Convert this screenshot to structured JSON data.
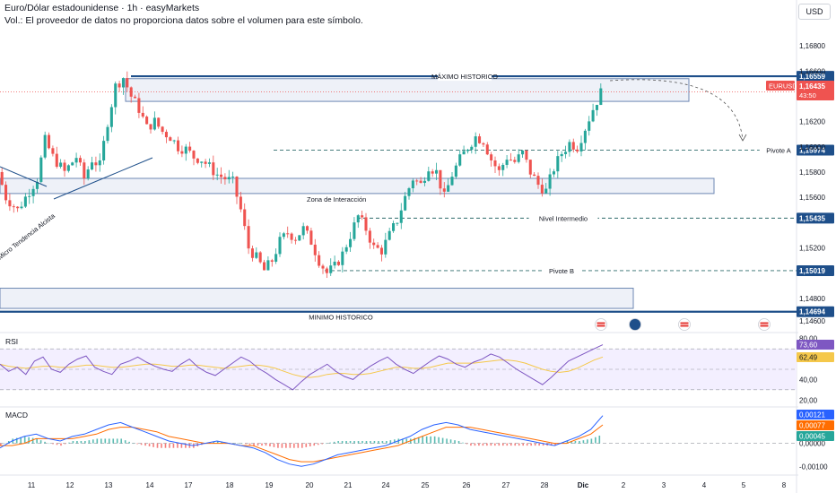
{
  "header": {
    "title": "Euro/Dólar estadounidense · 1h · easyMarkets",
    "volume_note": "Vol.: El proveedor de datos no proporciona datos sobre el volumen para este símbolo.",
    "currency": "USD"
  },
  "colors": {
    "up": "#26a69a",
    "down": "#ef5350",
    "level": "#1e4f8a",
    "zone_border": "#6d87b3",
    "zone_fill": "#eef1f8",
    "dashed": "#2e6b6b",
    "rsi_line": "#7e57c2",
    "rsi_ma": "#f5c84b",
    "macd_line": "#2962ff",
    "signal_line": "#ff6d00"
  },
  "chart_data": [
    {
      "type": "candlestick",
      "symbol": "EURUSD",
      "timeframe": "1h",
      "x_tick_labels": [
        "11",
        "12",
        "13",
        "14",
        "17",
        "18",
        "19",
        "20",
        "21",
        "24",
        "25",
        "26",
        "27",
        "28",
        "Dic",
        "2",
        "3",
        "4",
        "5",
        "8"
      ],
      "y_tick_labels": [
        "1,16800",
        "1,16600",
        "1,16200",
        "1,16000",
        "1,15800",
        "1,15600",
        "1,15200",
        "1,14800",
        "1,14600"
      ],
      "ylim": [
        1.1455,
        1.1695
      ],
      "current_price": "1,16435",
      "countdown": "43:50",
      "symbol_tag": "EURUSD",
      "price_path": [
        [
          0,
          1.158
        ],
        [
          2,
          1.156
        ],
        [
          5,
          1.155
        ],
        [
          8,
          1.1565
        ],
        [
          10,
          1.1575
        ],
        [
          12,
          1.1605
        ],
        [
          14,
          1.1592
        ],
        [
          17,
          1.158
        ],
        [
          20,
          1.1592
        ],
        [
          22,
          1.1575
        ],
        [
          24,
          1.159
        ],
        [
          26,
          1.1585
        ],
        [
          28,
          1.162
        ],
        [
          30,
          1.1648
        ],
        [
          32,
          1.1655
        ],
        [
          34,
          1.164
        ],
        [
          36,
          1.163
        ],
        [
          38,
          1.1615
        ],
        [
          40,
          1.162
        ],
        [
          42,
          1.1612
        ],
        [
          44,
          1.1608
        ],
        [
          46,
          1.16
        ],
        [
          48,
          1.1598
        ],
        [
          50,
          1.1592
        ],
        [
          52,
          1.159
        ],
        [
          54,
          1.1584
        ],
        [
          56,
          1.1578
        ],
        [
          58,
          1.1575
        ],
        [
          60,
          1.1572
        ],
        [
          62,
          1.155
        ],
        [
          64,
          1.152
        ],
        [
          66,
          1.1512
        ],
        [
          68,
          1.1502
        ],
        [
          70,
          1.151
        ],
        [
          72,
          1.1525
        ],
        [
          74,
          1.1532
        ],
        [
          76,
          1.1528
        ],
        [
          78,
          1.1535
        ],
        [
          80,
          1.1525
        ],
        [
          82,
          1.151
        ],
        [
          84,
          1.15
        ],
        [
          86,
          1.1505
        ],
        [
          88,
          1.1515
        ],
        [
          90,
          1.153
        ],
        [
          92,
          1.1545
        ],
        [
          94,
          1.1535
        ],
        [
          96,
          1.152
        ],
        [
          98,
          1.1518
        ],
        [
          100,
          1.153
        ],
        [
          102,
          1.1542
        ],
        [
          104,
          1.156
        ],
        [
          106,
          1.1575
        ],
        [
          108,
          1.157
        ],
        [
          110,
          1.1585
        ],
        [
          112,
          1.158
        ],
        [
          114,
          1.156
        ],
        [
          116,
          1.1578
        ],
        [
          118,
          1.159
        ],
        [
          120,
          1.16
        ],
        [
          122,
          1.1608
        ],
        [
          124,
          1.1605
        ],
        [
          126,
          1.159
        ],
        [
          128,
          1.158
        ],
        [
          130,
          1.1592
        ],
        [
          132,
          1.1588
        ],
        [
          134,
          1.1595
        ],
        [
          136,
          1.158
        ],
        [
          138,
          1.157
        ],
        [
          140,
          1.1565
        ],
        [
          142,
          1.1583
        ],
        [
          144,
          1.1595
        ],
        [
          146,
          1.1603
        ],
        [
          148,
          1.16
        ],
        [
          150,
          1.1615
        ],
        [
          152,
          1.163
        ],
        [
          154,
          1.1643
        ]
      ],
      "levels": [
        {
          "label": "MÁXIMO HISTORICO",
          "price": 1.16559,
          "price_label": "1,16559",
          "style": "solid"
        },
        {
          "label": "Pivote A",
          "price": 1.15974,
          "price_label": "1,15974",
          "style": "dashed"
        },
        {
          "label": "Nivel Intermedio",
          "price": 1.15435,
          "price_label": "1,15435",
          "style": "dashed"
        },
        {
          "label": "Pivote B",
          "price": 1.15019,
          "price_label": "1,15019",
          "style": "dashed"
        },
        {
          "label": "MINIMO HISTORICO",
          "price": 1.14694,
          "price_label": "1,14694",
          "style": "solid"
        }
      ],
      "zones": [
        {
          "label": "",
          "top": 1.1654,
          "bottom": 1.1636
        },
        {
          "label": "Zona de Interacción",
          "top": 1.1575,
          "bottom": 1.1563
        },
        {
          "label": "",
          "top": 1.1488,
          "bottom": 1.1472
        }
      ],
      "annotations": [
        "Micro Tendencia Alcista"
      ]
    },
    {
      "type": "line",
      "name": "RSI",
      "title": "RSI",
      "y_tick_labels": [
        "80,00",
        "40,00",
        "20,00"
      ],
      "ylim": [
        15,
        85
      ],
      "bands": [
        70,
        50,
        30
      ],
      "value_labels": [
        "73,60",
        "62,49"
      ],
      "rsi": [
        55,
        48,
        52,
        45,
        58,
        62,
        50,
        47,
        55,
        60,
        63,
        52,
        48,
        45,
        55,
        58,
        62,
        57,
        53,
        50,
        48,
        55,
        60,
        52,
        47,
        44,
        50,
        56,
        62,
        58,
        51,
        46,
        40,
        35,
        30,
        38,
        45,
        50,
        55,
        48,
        43,
        40,
        47,
        53,
        58,
        62,
        55,
        50,
        46,
        52,
        58,
        63,
        60,
        55,
        52,
        57,
        60,
        65,
        62,
        56,
        50,
        45,
        40,
        35,
        42,
        50,
        58,
        62,
        66,
        70,
        74
      ],
      "rsi_ma": [
        55,
        53,
        52,
        51,
        52,
        53,
        53,
        52,
        52,
        53,
        54,
        54,
        53,
        52,
        52,
        53,
        54,
        55,
        55,
        54,
        53,
        53,
        54,
        54,
        53,
        52,
        51,
        52,
        53,
        54,
        54,
        53,
        51,
        48,
        45,
        43,
        42,
        43,
        45,
        46,
        46,
        45,
        45,
        46,
        48,
        50,
        52,
        52,
        51,
        51,
        52,
        54,
        56,
        56,
        56,
        56,
        57,
        58,
        59,
        59,
        58,
        56,
        53,
        50,
        48,
        47,
        48,
        51,
        55,
        59,
        62
      ]
    },
    {
      "type": "bar",
      "name": "MACD",
      "title": "MACD",
      "y_tick_labels": [
        "0,00000",
        "-0,00100"
      ],
      "ylim": [
        -0.0013,
        0.0015
      ],
      "value_labels": [
        "0,00121",
        "0,00077",
        "0,00045"
      ],
      "macd": [
        -0.0002,
        0.0001,
        0.0003,
        0.0004,
        0.0002,
        0.0001,
        0.0003,
        0.0004,
        0.0006,
        0.0008,
        0.0009,
        0.0007,
        0.0005,
        0.0003,
        0.0001,
        0.0,
        -0.0001,
        0.0,
        0.0001,
        0.0,
        -0.0001,
        -0.0002,
        -0.0004,
        -0.0007,
        -0.0009,
        -0.001,
        -0.0009,
        -0.0007,
        -0.0005,
        -0.0004,
        -0.0003,
        -0.0002,
        -0.0001,
        0.0001,
        0.0003,
        0.0006,
        0.0008,
        0.0009,
        0.0008,
        0.0006,
        0.0005,
        0.0004,
        0.0003,
        0.0002,
        0.0001,
        0.0,
        -0.0001,
        0.0001,
        0.0003,
        0.0006,
        0.0012
      ],
      "signal": [
        -0.0001,
        -0.0001,
        0.0,
        0.0002,
        0.0002,
        0.0002,
        0.0002,
        0.0003,
        0.0004,
        0.0006,
        0.0007,
        0.0007,
        0.0006,
        0.0005,
        0.0003,
        0.0002,
        0.0001,
        0.0,
        0.0,
        0.0,
        -0.0001,
        -0.0001,
        -0.0003,
        -0.0005,
        -0.0007,
        -0.0008,
        -0.0008,
        -0.0007,
        -0.0006,
        -0.0005,
        -0.0004,
        -0.0003,
        -0.0002,
        -0.0001,
        0.0001,
        0.0003,
        0.0005,
        0.0007,
        0.0007,
        0.0007,
        0.0006,
        0.0005,
        0.0004,
        0.0003,
        0.0002,
        0.0001,
        0.0,
        0.0,
        0.0002,
        0.0004,
        0.0008
      ]
    }
  ]
}
